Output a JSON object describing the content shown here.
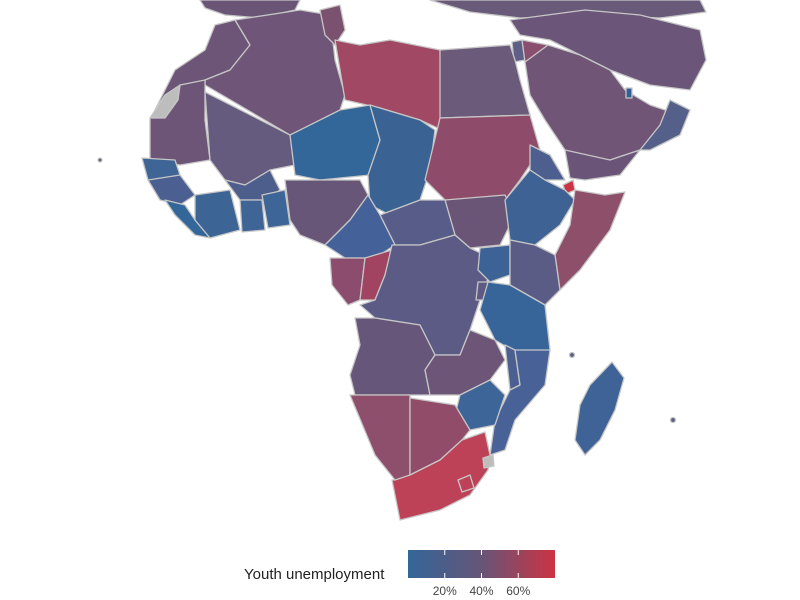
{
  "map": {
    "region": "Africa",
    "measure": "Youth unemployment",
    "scale_colors": {
      "low": "#336699",
      "mid": "#665577",
      "high": "#cc3344",
      "missing": "#bdbdbd",
      "border": "#c6c6c6"
    },
    "scale_range": [
      0,
      80
    ]
  },
  "legend": {
    "title": "Youth unemployment",
    "ticks": [
      {
        "label": "20%",
        "value": 20
      },
      {
        "label": "40%",
        "value": 40
      },
      {
        "label": "60%",
        "value": 60
      }
    ]
  }
}
